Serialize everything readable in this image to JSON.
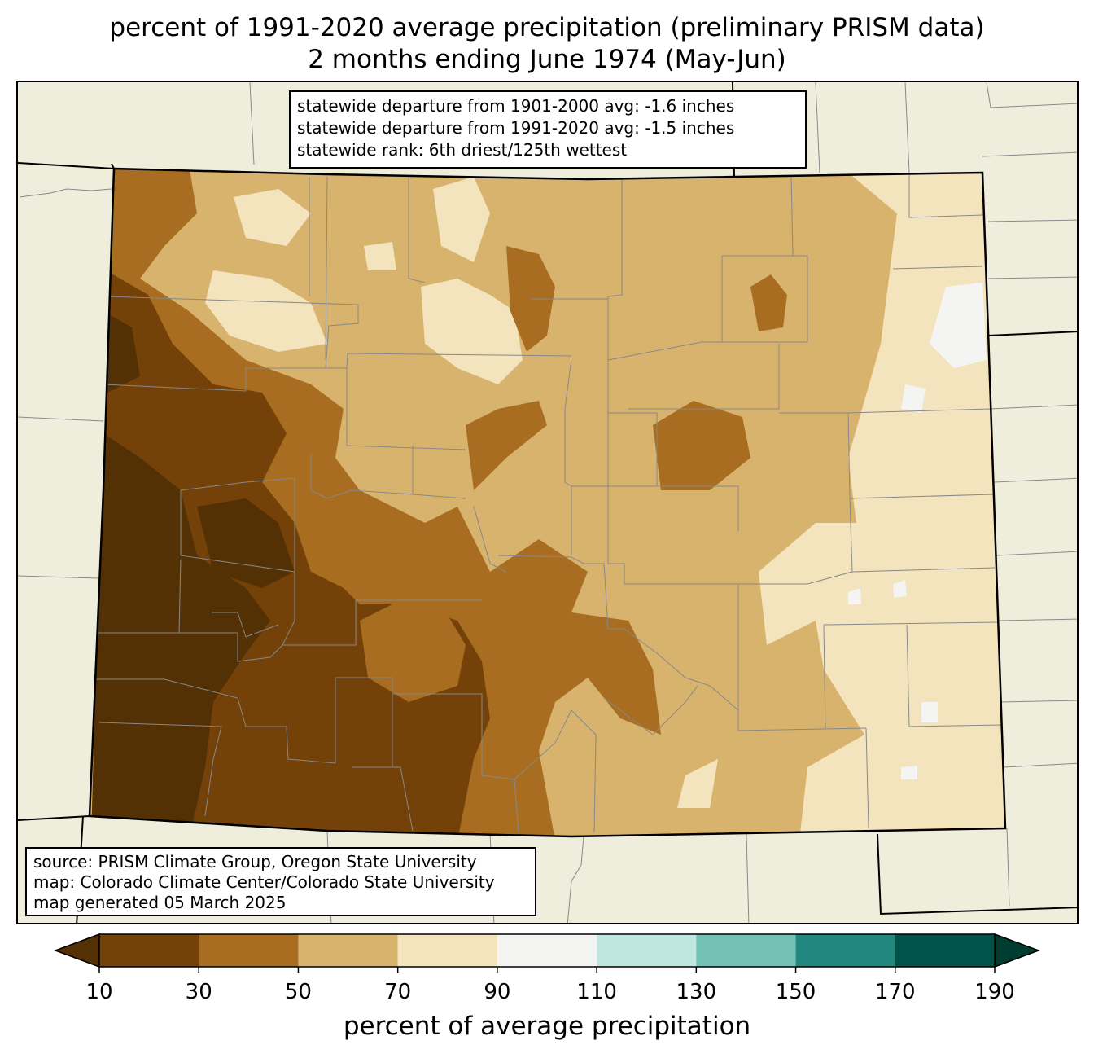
{
  "title": {
    "line1": "percent of 1991-2020 average precipitation (preliminary PRISM data)",
    "line2": "2 months ending June 1974 (May-Jun)"
  },
  "stats_box": {
    "line1": "statewide departure from 1901-2000 avg: -1.6 inches",
    "line2": "statewide departure from 1991-2020 avg: -1.5 inches",
    "line3": "statewide rank: 6th driest/125th wettest"
  },
  "source_box": {
    "line1": "source: PRISM Climate Group, Oregon State University",
    "line2": "map: Colorado Climate Center/Colorado State University",
    "line3": "map generated 05 March 2025"
  },
  "legend": {
    "title": "percent of average precipitation",
    "ticks": [
      "10",
      "30",
      "50",
      "70",
      "90",
      "110",
      "130",
      "150",
      "170",
      "190"
    ],
    "colors": [
      "#543005",
      "#744208",
      "#a86d21",
      "#d8b36e",
      "#f4e4be",
      "#f4f4f2",
      "#bfe7e1",
      "#72c1b4",
      "#21877f",
      "#01534a",
      "#003c30"
    ]
  },
  "map_colors": {
    "background": "#efeedc",
    "county_lines": "#888888",
    "state_lines": "#000000"
  }
}
